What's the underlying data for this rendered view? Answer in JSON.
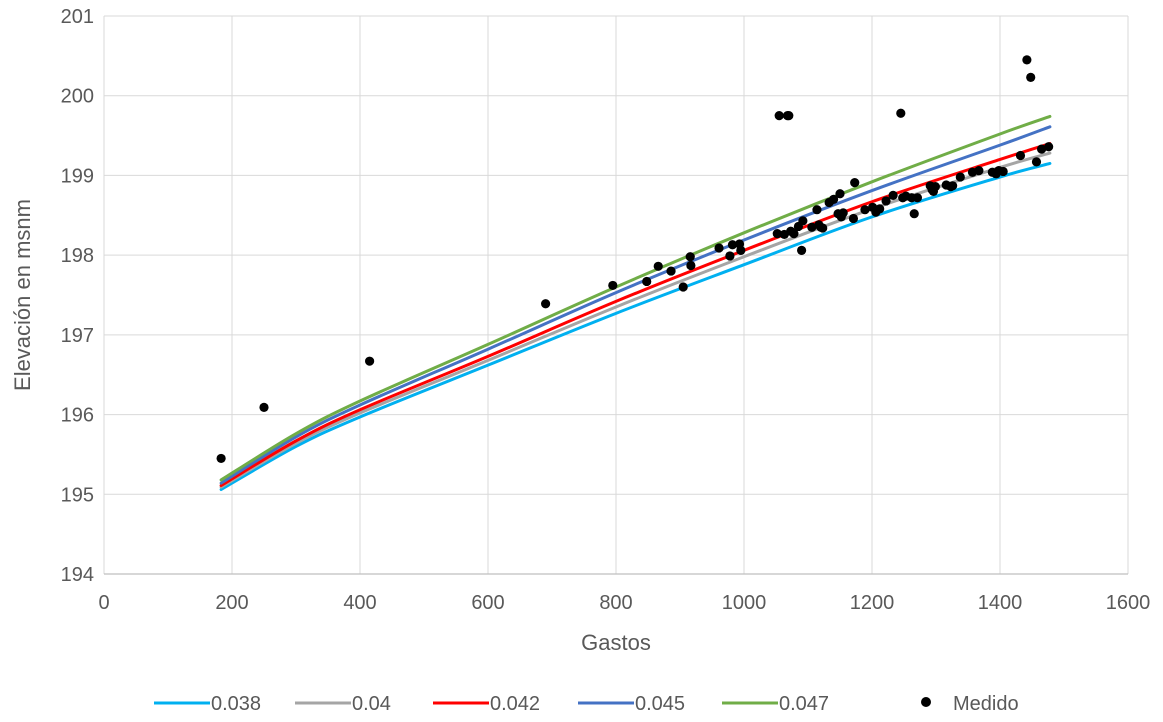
{
  "chart_data": {
    "type": "scatter",
    "title": "",
    "xlabel": "Gastos",
    "ylabel": "Elevación en msnm",
    "xlim": [
      0,
      1600
    ],
    "ylim": [
      194,
      201
    ],
    "xticks": [
      0,
      200,
      400,
      600,
      800,
      1000,
      1200,
      1400,
      1600
    ],
    "yticks": [
      194,
      195,
      196,
      197,
      198,
      199,
      200,
      201
    ],
    "grid": true,
    "legend_position": "bottom",
    "series": [
      {
        "name": "0.038",
        "kind": "line",
        "color": "#00b0f0",
        "x": [
          183,
          300,
          400,
          600,
          800,
          1000,
          1200,
          1400,
          1478
        ],
        "y": [
          195.06,
          195.6,
          195.97,
          196.62,
          197.27,
          197.88,
          198.48,
          198.98,
          199.15
        ]
      },
      {
        "name": "0.04",
        "kind": "line",
        "color": "#a5a5a5",
        "x": [
          183,
          300,
          400,
          600,
          800,
          1000,
          1200,
          1400,
          1478
        ],
        "y": [
          195.09,
          195.64,
          196.02,
          196.68,
          197.35,
          197.98,
          198.58,
          199.1,
          199.28
        ]
      },
      {
        "name": "0.042",
        "kind": "line",
        "color": "#ff0000",
        "x": [
          183,
          300,
          400,
          600,
          800,
          1000,
          1200,
          1400,
          1478
        ],
        "y": [
          195.11,
          195.67,
          196.06,
          196.73,
          197.42,
          198.06,
          198.67,
          199.2,
          199.4
        ]
      },
      {
        "name": "0.045",
        "kind": "line",
        "color": "#4472c4",
        "x": [
          183,
          300,
          400,
          600,
          800,
          1000,
          1200,
          1400,
          1478
        ],
        "y": [
          195.14,
          195.72,
          196.12,
          196.82,
          197.53,
          198.19,
          198.81,
          199.38,
          199.61
        ]
      },
      {
        "name": "0.047",
        "kind": "line",
        "color": "#70ad47",
        "x": [
          183,
          300,
          400,
          600,
          800,
          1000,
          1200,
          1400,
          1478
        ],
        "y": [
          195.18,
          195.76,
          196.17,
          196.88,
          197.6,
          198.28,
          198.92,
          199.52,
          199.74
        ]
      },
      {
        "name": "Medido",
        "kind": "scatter",
        "color": "#000000",
        "points": [
          [
            183,
            195.45
          ],
          [
            250,
            196.09
          ],
          [
            415,
            196.67
          ],
          [
            690,
            197.39
          ],
          [
            795,
            197.62
          ],
          [
            848,
            197.67
          ],
          [
            866,
            197.86
          ],
          [
            886,
            197.8
          ],
          [
            905,
            197.6
          ],
          [
            916,
            197.98
          ],
          [
            917,
            197.87
          ],
          [
            961,
            198.09
          ],
          [
            978,
            197.99
          ],
          [
            982,
            198.13
          ],
          [
            993,
            198.14
          ],
          [
            995,
            198.06
          ],
          [
            1052,
            198.27
          ],
          [
            1055,
            199.75
          ],
          [
            1063,
            198.26
          ],
          [
            1068,
            199.75
          ],
          [
            1070,
            199.75
          ],
          [
            1073,
            198.3
          ],
          [
            1078,
            198.27
          ],
          [
            1085,
            198.36
          ],
          [
            1090,
            198.06
          ],
          [
            1092,
            198.43
          ],
          [
            1106,
            198.35
          ],
          [
            1114,
            198.57
          ],
          [
            1117,
            198.38
          ],
          [
            1120,
            198.35
          ],
          [
            1123,
            198.34
          ],
          [
            1133,
            198.66
          ],
          [
            1140,
            198.7
          ],
          [
            1147,
            198.52
          ],
          [
            1150,
            198.77
          ],
          [
            1152,
            198.48
          ],
          [
            1155,
            198.53
          ],
          [
            1171,
            198.46
          ],
          [
            1173,
            198.91
          ],
          [
            1189,
            198.57
          ],
          [
            1201,
            198.6
          ],
          [
            1206,
            198.54
          ],
          [
            1212,
            198.58
          ],
          [
            1222,
            198.68
          ],
          [
            1233,
            198.75
          ],
          [
            1245,
            199.78
          ],
          [
            1248,
            198.72
          ],
          [
            1253,
            198.74
          ],
          [
            1262,
            198.72
          ],
          [
            1266,
            198.52
          ],
          [
            1271,
            198.72
          ],
          [
            1291,
            198.87
          ],
          [
            1294,
            198.82
          ],
          [
            1296,
            198.8
          ],
          [
            1299,
            198.86
          ],
          [
            1316,
            198.88
          ],
          [
            1323,
            198.86
          ],
          [
            1326,
            198.87
          ],
          [
            1338,
            198.98
          ],
          [
            1357,
            199.04
          ],
          [
            1367,
            199.06
          ],
          [
            1388,
            199.04
          ],
          [
            1394,
            199.02
          ],
          [
            1398,
            199.06
          ],
          [
            1405,
            199.05
          ],
          [
            1432,
            199.25
          ],
          [
            1442,
            200.45
          ],
          [
            1448,
            200.23
          ],
          [
            1457,
            199.17
          ],
          [
            1465,
            199.33
          ],
          [
            1476,
            199.36
          ]
        ]
      }
    ]
  }
}
